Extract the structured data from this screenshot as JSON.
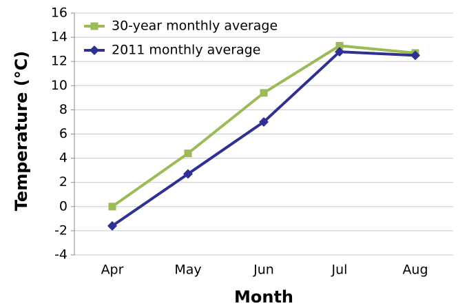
{
  "chart_data": {
    "type": "line",
    "x_label": "Month",
    "y_label": "Temperature (°C)",
    "categories": [
      "Apr",
      "May",
      "Jun",
      "Jul",
      "Aug"
    ],
    "series": [
      {
        "name": "30-year monthly average",
        "color": "#9bbb59",
        "marker": "square",
        "values": [
          0,
          4.4,
          9.4,
          13.3,
          12.7
        ]
      },
      {
        "name": "2011 monthly average",
        "color": "#2e3192",
        "marker": "diamond",
        "values": [
          -1.6,
          2.7,
          7.0,
          12.8,
          12.5
        ]
      }
    ],
    "ylim": [
      -4,
      16
    ],
    "yticks": [
      -4,
      -2,
      0,
      2,
      4,
      6,
      8,
      10,
      12,
      14,
      16
    ],
    "grid": true,
    "legend": "upper left"
  }
}
